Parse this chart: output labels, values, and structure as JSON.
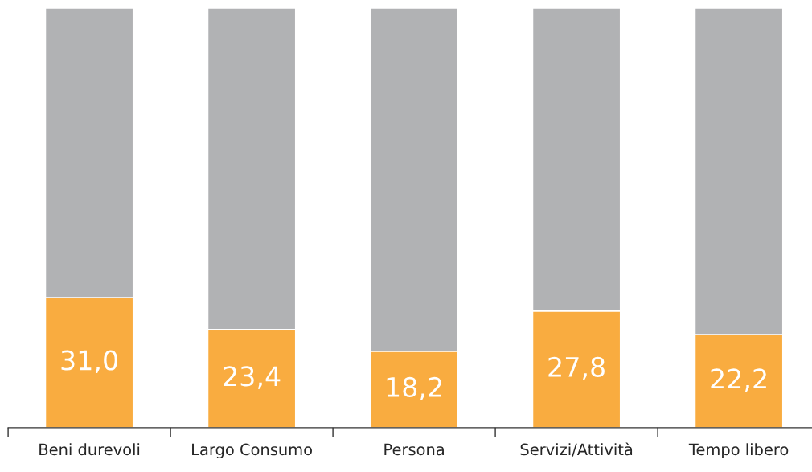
{
  "chart_data": {
    "type": "bar",
    "stacked": true,
    "categories": [
      "Beni durevoli",
      "Largo Consumo",
      "Persona",
      "Servizi/Attività",
      "Tempo libero"
    ],
    "series": [
      {
        "color": "#f9ac40",
        "values": [
          31.0,
          23.4,
          18.2,
          27.8,
          22.2
        ],
        "value_labels": [
          "31,0",
          "23,4",
          "18,2",
          "27,8",
          "22,2"
        ]
      },
      {
        "color": "#b1b2b4",
        "values": [
          69.0,
          76.6,
          81.8,
          72.2,
          77.8
        ]
      }
    ],
    "ylim": [
      0,
      100
    ]
  }
}
